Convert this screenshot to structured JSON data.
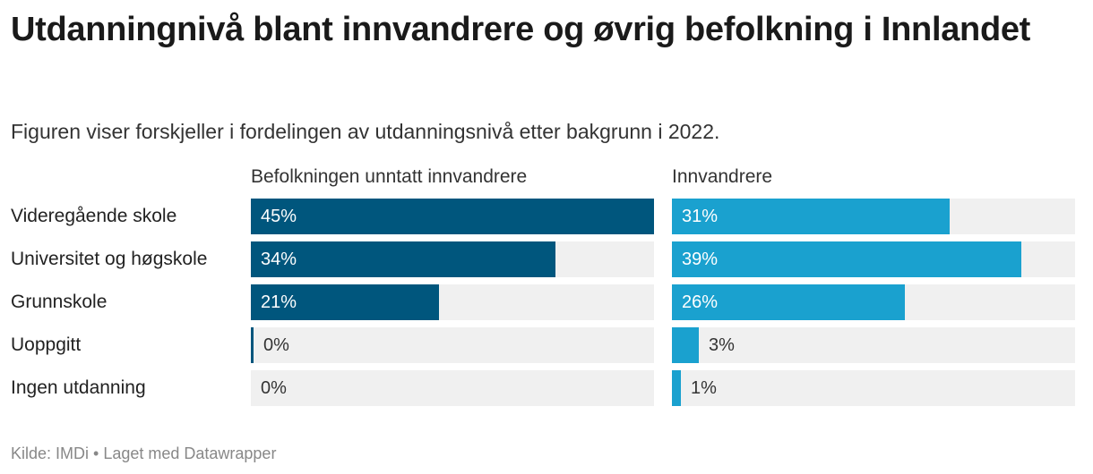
{
  "header": {
    "title": "Utdanningnivå blant innvandrere og øvrig befolkning i Innlandet",
    "subtitle": "Figuren viser forskjeller i fordelingen av utdanningsnivå etter bakgrunn i 2022."
  },
  "footer": {
    "source": "Kilde: IMDi • Laget med Datawrapper"
  },
  "colors": {
    "series1": "#00567d",
    "series2": "#1aa1cf",
    "track": "#f0f0f0"
  },
  "chart_data": {
    "type": "bar",
    "orientation": "horizontal",
    "title": "Utdanningnivå blant innvandrere og øvrig befolkning i Innlandet",
    "subtitle": "Figuren viser forskjeller i fordelingen av utdanningsnivå etter bakgrunn i 2022.",
    "categories": [
      "Videregående skole",
      "Universitet og høgskole",
      "Grunnskole",
      "Uoppgitt",
      "Ingen utdanning"
    ],
    "xlim": [
      0,
      45
    ],
    "unit": "%",
    "series": [
      {
        "name": "Befolkningen unntatt innvandrere",
        "values": [
          45,
          34,
          21,
          0,
          0
        ],
        "labels": [
          "45%",
          "34%",
          "21%",
          "0%",
          "0%"
        ]
      },
      {
        "name": "Innvandrere",
        "values": [
          31,
          39,
          26,
          3,
          1
        ],
        "labels": [
          "31%",
          "39%",
          "26%",
          "3%",
          "1%"
        ]
      }
    ]
  }
}
